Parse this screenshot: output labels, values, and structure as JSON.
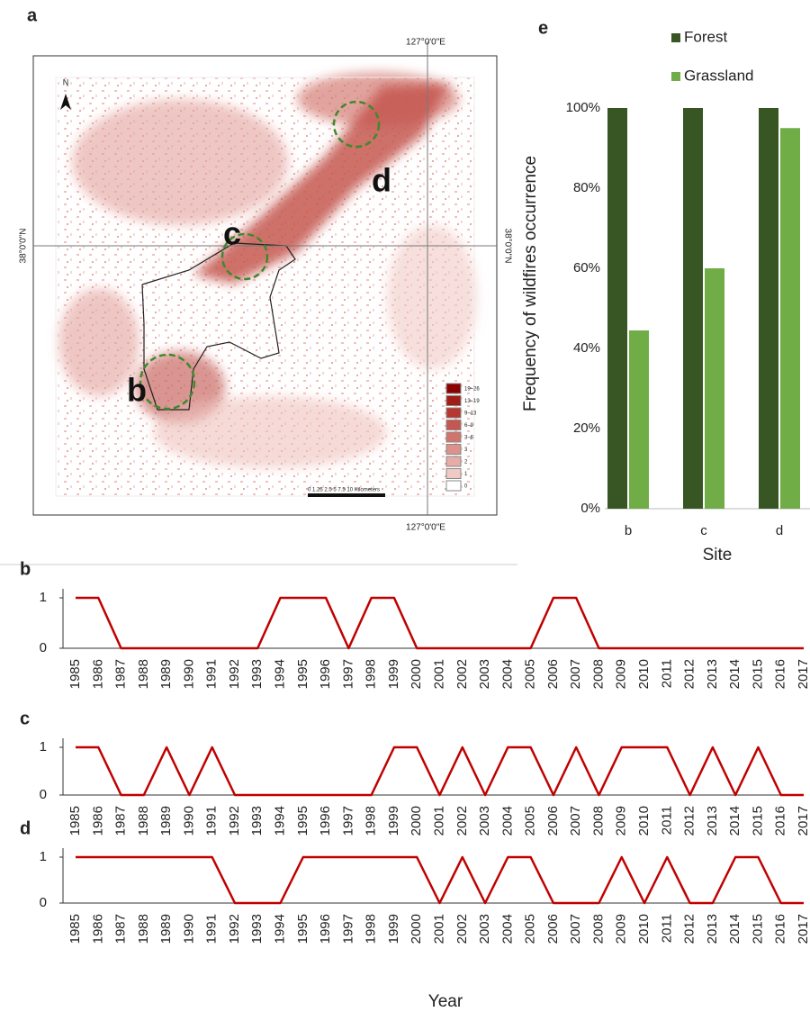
{
  "map": {
    "panel_label": "a",
    "lon_label_top": "127°0'0\"E",
    "lon_label_bottom": "127°0'0\"E",
    "lat_label_left": "38°0'0\"N",
    "lat_label_right": "38°0'0\"N",
    "north": "N",
    "site_labels": [
      "b",
      "c",
      "d"
    ],
    "legend": [
      "19–26",
      "13–19",
      "9–13",
      "6–9",
      "3–6",
      "3",
      "2",
      "1",
      "0"
    ],
    "scale_bar": "0 1.25 2.5   5    7.5   10 Kilometers"
  },
  "chart_data": [
    {
      "type": "bar",
      "panel_label": "e",
      "categories": [
        "b",
        "c",
        "d"
      ],
      "series": [
        {
          "name": "Forest",
          "color": "#375623",
          "values": [
            100,
            100,
            100
          ]
        },
        {
          "name": "Grassland",
          "color": "#70ad47",
          "values": [
            44.5,
            60,
            95
          ]
        }
      ],
      "ylim": [
        0,
        100
      ],
      "yticks": [
        {
          "value": 0,
          "label": "0%"
        },
        {
          "value": 20,
          "label": "20%"
        },
        {
          "value": 40,
          "label": "40%"
        },
        {
          "value": 60,
          "label": "60%"
        },
        {
          "value": 80,
          "label": "80%"
        },
        {
          "value": 100,
          "label": "100%"
        }
      ],
      "ylabel": "Frequency of wildfires occurrence",
      "xlabel": "Site",
      "legend": "top"
    },
    {
      "type": "line",
      "panel_label": "b",
      "color": "#c00000",
      "categories": [
        "1985",
        "1986",
        "1987",
        "1988",
        "1989",
        "1990",
        "1991",
        "1992",
        "1993",
        "1994",
        "1995",
        "1996",
        "1997",
        "1998",
        "1999",
        "2000",
        "2001",
        "2002",
        "2003",
        "2004",
        "2005",
        "2006",
        "2007",
        "2008",
        "2009",
        "2010",
        "2011",
        "2012",
        "2013",
        "2014",
        "2015",
        "2016",
        "2017"
      ],
      "values": [
        1,
        1,
        0,
        0,
        0,
        0,
        0,
        0,
        0,
        1,
        1,
        1,
        0,
        1,
        1,
        0,
        0,
        0,
        0,
        0,
        0,
        1,
        1,
        0,
        0,
        0,
        0,
        0,
        0,
        0,
        0,
        0,
        0
      ],
      "ylim": [
        0,
        1
      ],
      "yticks": [
        0,
        1
      ]
    },
    {
      "type": "line",
      "panel_label": "c",
      "color": "#c00000",
      "categories": [
        "1985",
        "1986",
        "1987",
        "1988",
        "1989",
        "1990",
        "1991",
        "1992",
        "1993",
        "1994",
        "1995",
        "1996",
        "1997",
        "1998",
        "1999",
        "2000",
        "2001",
        "2002",
        "2003",
        "2004",
        "2005",
        "2006",
        "2007",
        "2008",
        "2009",
        "2010",
        "2011",
        "2012",
        "2013",
        "2014",
        "2015",
        "2016",
        "2017"
      ],
      "values": [
        1,
        1,
        0,
        0,
        1,
        0,
        1,
        0,
        0,
        0,
        0,
        0,
        0,
        0,
        1,
        1,
        0,
        1,
        0,
        1,
        1,
        0,
        1,
        0,
        1,
        1,
        1,
        0,
        1,
        0,
        1,
        0,
        0
      ],
      "ylim": [
        0,
        1
      ],
      "yticks": [
        0,
        1
      ]
    },
    {
      "type": "line",
      "panel_label": "d",
      "color": "#c00000",
      "categories": [
        "1985",
        "1986",
        "1987",
        "1988",
        "1989",
        "1990",
        "1991",
        "1992",
        "1993",
        "1994",
        "1995",
        "1996",
        "1997",
        "1998",
        "1999",
        "2000",
        "2001",
        "2002",
        "2003",
        "2004",
        "2005",
        "2006",
        "2007",
        "2008",
        "2009",
        "2010",
        "2011",
        "2012",
        "2013",
        "2014",
        "2015",
        "2016",
        "2017"
      ],
      "values": [
        1,
        1,
        1,
        1,
        1,
        1,
        1,
        0,
        0,
        0,
        1,
        1,
        1,
        1,
        1,
        1,
        0,
        1,
        0,
        1,
        1,
        0,
        0,
        0,
        1,
        0,
        1,
        0,
        0,
        1,
        1,
        0,
        0
      ],
      "ylim": [
        0,
        1
      ],
      "yticks": [
        0,
        1
      ],
      "xlabel": "Year"
    }
  ]
}
